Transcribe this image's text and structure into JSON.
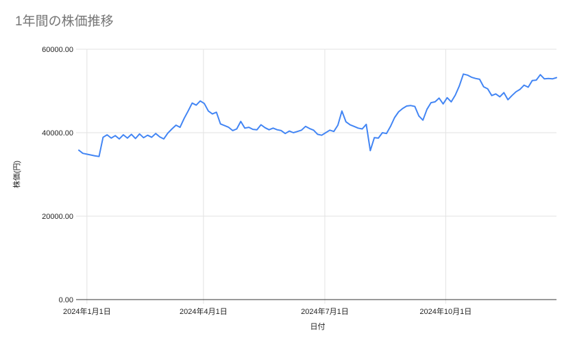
{
  "chart_data": {
    "type": "line",
    "title": "1年間の株価推移",
    "xlabel": "日付",
    "ylabel": "株価(円)",
    "ylim": [
      0,
      60000
    ],
    "grid": true,
    "legend": "none",
    "colors": {
      "title": "#757575",
      "line": "#4285f4",
      "gridline": "#e2e2e2",
      "axis_line": "#333333",
      "tick_label": "#1f1f1f",
      "background": "#ffffff"
    },
    "y_ticks": [
      {
        "label": "0.00",
        "value": 0
      },
      {
        "label": "20000.00",
        "value": 20000
      },
      {
        "label": "40000.00",
        "value": 40000
      },
      {
        "label": "60000.00",
        "value": 60000
      }
    ],
    "x_ticks": [
      {
        "label": "2024年1月1日",
        "pos": 0.017
      },
      {
        "label": "2024年4月1日",
        "pos": 0.261
      },
      {
        "label": "2024年7月1日",
        "pos": 0.515
      },
      {
        "label": "2024年10月1日",
        "pos": 0.768
      }
    ],
    "series": [
      {
        "color": "#4285f4",
        "values": [
          35800,
          35050,
          34850,
          34650,
          34450,
          34300,
          38900,
          39500,
          38700,
          39300,
          38500,
          39500,
          38700,
          39600,
          38600,
          39700,
          38800,
          39400,
          38900,
          39800,
          39000,
          38500,
          39900,
          40900,
          41800,
          41300,
          43400,
          45200,
          47100,
          46600,
          47600,
          47000,
          45200,
          44500,
          44900,
          42100,
          41700,
          41300,
          40500,
          40900,
          42700,
          41100,
          41300,
          40800,
          40700,
          41900,
          41200,
          40700,
          41100,
          40700,
          40500,
          39800,
          40400,
          40000,
          40300,
          40600,
          41500,
          41000,
          40600,
          39600,
          39400,
          40000,
          40600,
          40300,
          41800,
          45200,
          42600,
          41900,
          41500,
          41100,
          40900,
          42000,
          35700,
          38800,
          38700,
          40000,
          39800,
          41500,
          43600,
          45000,
          45800,
          46400,
          46500,
          46300,
          44000,
          43000,
          45600,
          47200,
          47400,
          48300,
          46900,
          48400,
          47400,
          49000,
          51200,
          54050,
          53800,
          53300,
          53000,
          52800,
          51000,
          50500,
          48900,
          49300,
          48600,
          49600,
          47900,
          48900,
          49800,
          50400,
          51400,
          50900,
          52500,
          52600,
          53900,
          52900,
          53000,
          52900,
          53200
        ]
      }
    ]
  }
}
